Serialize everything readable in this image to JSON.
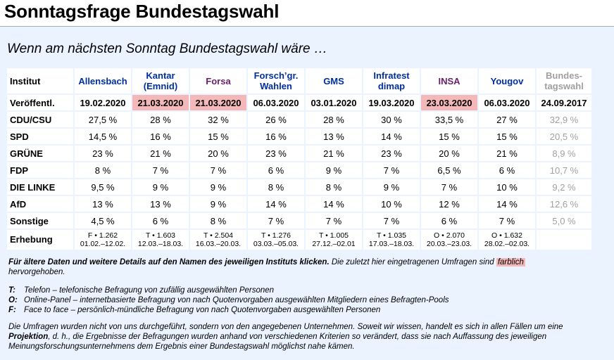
{
  "page": {
    "title": "Sonntagsfrage Bundestagswahl",
    "subtitle": "Wenn am nächsten Sonntag Bundestagswahl wäre …"
  },
  "table": {
    "corner_label": "Institut",
    "institutes": [
      {
        "line1": "Allensbach",
        "line2": ""
      },
      {
        "line1": "Kantar",
        "line2": "(Emnid)"
      },
      {
        "line1": "Forsa",
        "line2": ""
      },
      {
        "line1": "Forsch’gr.",
        "line2": "Wahlen"
      },
      {
        "line1": "GMS",
        "line2": ""
      },
      {
        "line1": "Infratest",
        "line2": "dimap"
      },
      {
        "line1": "INSA",
        "line2": ""
      },
      {
        "line1": "Yougov",
        "line2": ""
      },
      {
        "line1": "Bundes-",
        "line2": "tagswahl"
      }
    ],
    "published_label": "Veröffentl.",
    "published": [
      "19.02.2020",
      "21.03.2020",
      "21.03.2020",
      "06.03.2020",
      "03.01.2020",
      "19.03.2020",
      "23.03.2020",
      "06.03.2020",
      "24.09.2017"
    ],
    "highlight_color": "#f4b8b8",
    "rows": [
      {
        "party": "CDU/CSU",
        "values": [
          "27,5 %",
          "28 %",
          "32 %",
          "26 %",
          "28 %",
          "30 %",
          "33,5 %",
          "27 %",
          "32,9 %"
        ]
      },
      {
        "party": "SPD",
        "values": [
          "14,5 %",
          "16 %",
          "15 %",
          "16 %",
          "13 %",
          "14 %",
          "15 %",
          "15 %",
          "20,5 %"
        ]
      },
      {
        "party": "GRÜNE",
        "values": [
          "23 %",
          "21 %",
          "20 %",
          "23 %",
          "21 %",
          "23 %",
          "20 %",
          "21 %",
          "8,9 %"
        ]
      },
      {
        "party": "FDP",
        "values": [
          "8 %",
          "7 %",
          "7 %",
          "6 %",
          "9 %",
          "7 %",
          "6,5 %",
          "6 %",
          "10,7 %"
        ]
      },
      {
        "party": "DIE LINKE",
        "values": [
          "9,5 %",
          "9 %",
          "9 %",
          "8 %",
          "8 %",
          "9 %",
          "7 %",
          "10 %",
          "9,2 %"
        ]
      },
      {
        "party": "AfD",
        "values": [
          "13 %",
          "13 %",
          "9 %",
          "14 %",
          "14 %",
          "10 %",
          "12 %",
          "14 %",
          "12,6 %"
        ]
      },
      {
        "party": "Sonstige",
        "values": [
          "4,5 %",
          "6 %",
          "8 %",
          "7 %",
          "7 %",
          "7 %",
          "6 %",
          "7 %",
          "5,0 %"
        ]
      }
    ],
    "survey_label": "Erhebung",
    "surveys": [
      {
        "line1": "F • 1.262",
        "line2": "01.02.–12.02."
      },
      {
        "line1": "T • 1.603",
        "line2": "12.03.–18.03."
      },
      {
        "line1": "T • 2.504",
        "line2": "16.03.–20.03."
      },
      {
        "line1": "T • 1.276",
        "line2": "03.03.–05.03."
      },
      {
        "line1": "T • 1.005",
        "line2": "27.12.–02.01"
      },
      {
        "line1": "T • 1.035",
        "line2": "17.03.–18.03."
      },
      {
        "line1": "O • 2.070",
        "line2": "20.03.–23.03."
      },
      {
        "line1": "O • 1.632",
        "line2": "28.02.–02.03."
      },
      {
        "line1": "",
        "line2": ""
      }
    ]
  },
  "notes": {
    "click_hint_bold": "Für ältere Daten und weitere Details auf den Namen des jeweiligen Instituts klicken.",
    "click_hint_rest": " Die zuletzt hier eingetragenen Umfragen sind ",
    "farblich": "farblich",
    "hervorgehoben": "hervorgehoben.",
    "legend": [
      {
        "key": "T:",
        "text": "Telefon – telefonische Befragung von zufällig ausgewählten Personen"
      },
      {
        "key": "O:",
        "text": "Online-Panel – internetbasierte Befragung von nach Quotenvorgaben ausgewählten Mitgliedern eines Befragten-Pools"
      },
      {
        "key": "F:",
        "text": "Face to face – persönlich-mündliche Befragung von nach Quotenvorgaben ausgewählten Personen"
      }
    ],
    "disclaimer_1": "Die Umfragen wurden nicht von uns durchgeführt, sondern von den angegebenen Unternehmen. Soweit wir wissen, handelt es sich in allen Fällen um eine ",
    "disclaimer_bold": "Projektion",
    "disclaimer_2": ", d. h., die Ergebnisse der Befragungen wurden anhand von verschiedenen Kriterien so verändert, dass sie nach Auffassung des jeweiligen Meinungsforschungsunternehmens dem Ergebnis einer Bundestagswahl möglichst nahe kämen."
  }
}
